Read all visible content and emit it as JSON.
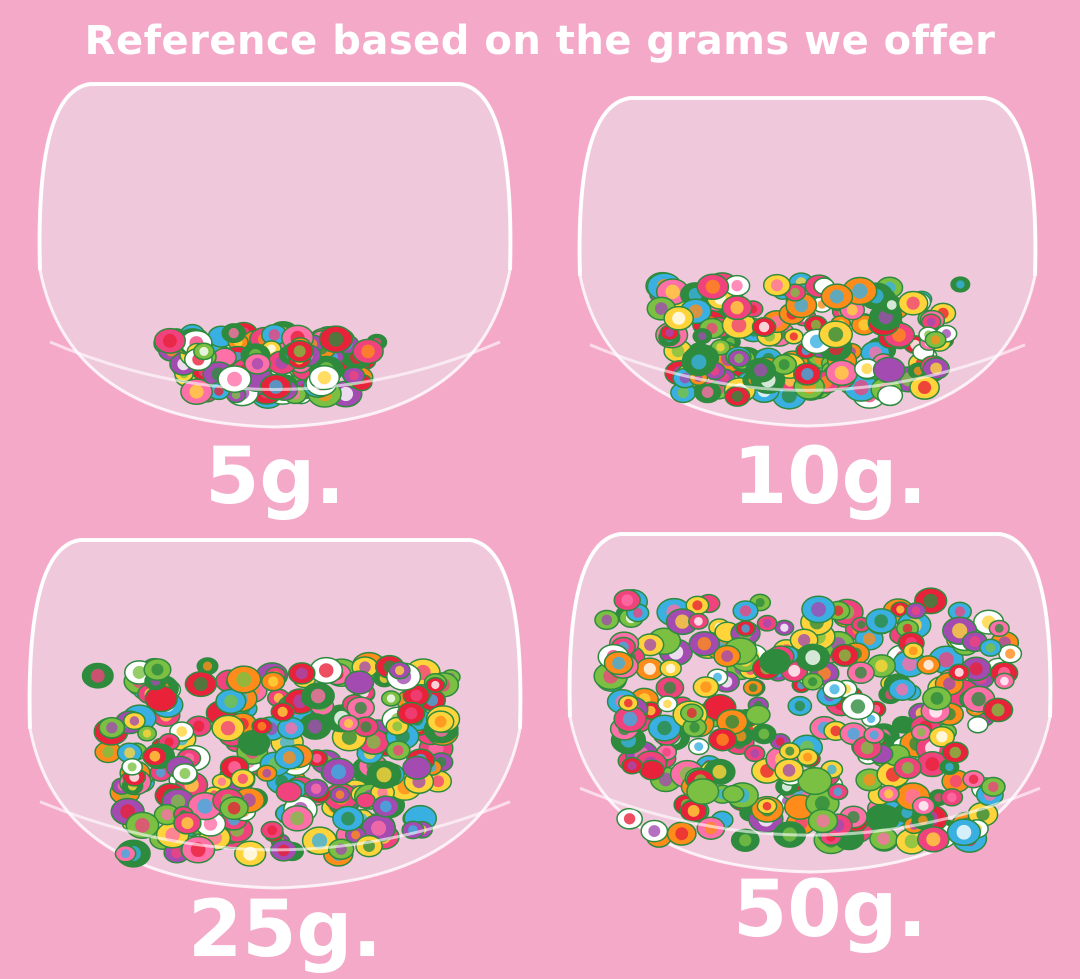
{
  "title": "Reference based on the grams we offer",
  "items": [
    {
      "label": "5g.",
      "fill_level": 0.25
    },
    {
      "label": "10g.",
      "fill_level": 0.45
    },
    {
      "label": "25g.",
      "fill_level": 0.7
    },
    {
      "label": "50g.",
      "fill_level": 0.9
    }
  ],
  "colors": {
    "background": "#f4a9c9",
    "text": "#ffffff",
    "candy_palette": [
      "#f0437e",
      "#ffd43b",
      "#7bc043",
      "#ff8c1a",
      "#e8223a",
      "#3ab0e2",
      "#ffffff",
      "#a34bb0",
      "#2e8b3e",
      "#ff6fa8"
    ]
  }
}
